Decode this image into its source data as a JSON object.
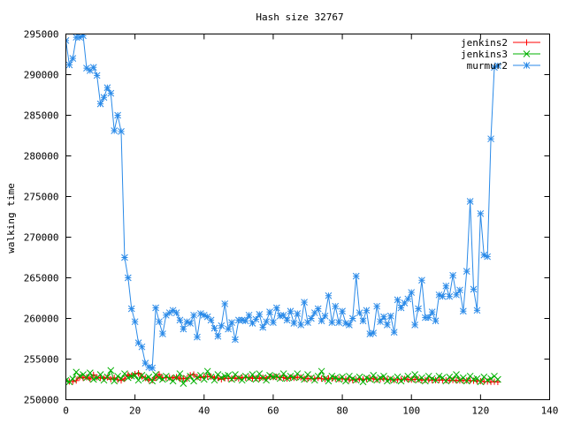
{
  "chart_data": {
    "type": "line",
    "title": "Hash size 32767",
    "xlabel": "",
    "ylabel": "walking time",
    "xlim": [
      0,
      140
    ],
    "ylim": [
      250000,
      295000
    ],
    "xticks": [
      "0",
      "20",
      "40",
      "60",
      "80",
      "100",
      "120",
      "140"
    ],
    "yticks": [
      "250000",
      "255000",
      "260000",
      "265000",
      "270000",
      "275000",
      "280000",
      "285000",
      "290000",
      "295000"
    ],
    "grid": false,
    "legend_position": "top-right",
    "series": [
      {
        "name": "jenkins2",
        "color": "#ff0000",
        "marker": "plus",
        "values": [
          252242,
          252240,
          252227,
          252355,
          252776,
          252678,
          252764,
          252553,
          253064,
          252754,
          252664,
          252632,
          252751,
          252520,
          252684,
          252458,
          252368,
          252575,
          253075,
          252925,
          253164,
          253256,
          252861,
          252665,
          252431,
          252399,
          252683,
          253113,
          252679,
          252708,
          252739,
          252674,
          252779,
          252561,
          252647,
          252580,
          253018,
          253103,
          252788,
          252705,
          252862,
          252832,
          252850,
          252662,
          252666,
          252508,
          252645,
          252605,
          252617,
          252681,
          252601,
          252754,
          252695,
          252749,
          252623,
          252655,
          252594,
          252720,
          252622,
          252826,
          252791,
          252803,
          252724,
          252710,
          252593,
          252735,
          252682,
          252771,
          252742,
          252575,
          252592,
          252626,
          252578,
          252678,
          252587,
          252531,
          252654,
          252587,
          252613,
          252547,
          252585,
          252538,
          252451,
          252415,
          252452,
          252560,
          252500,
          252545,
          252623,
          252558,
          252477,
          252520,
          252577,
          252519,
          252467,
          252422,
          252475,
          252480,
          252564,
          252475,
          252466,
          252509,
          252488,
          252406,
          252435,
          252452,
          252400,
          252401,
          252429,
          252410,
          252392,
          252371,
          252414,
          252362,
          252366,
          252370,
          252366,
          252356,
          252334,
          252301,
          252292,
          252241,
          252233,
          252195,
          252210,
          252178
        ]
      },
      {
        "name": "jenkins3",
        "color": "#00b000",
        "marker": "cross",
        "values": [
          252380,
          252200,
          252550,
          253400,
          252900,
          253100,
          252700,
          253300,
          252500,
          252700,
          253100,
          252400,
          252800,
          253600,
          252300,
          252900,
          252600,
          253200,
          252700,
          252900,
          253000,
          252400,
          253000,
          252600,
          252800,
          252300,
          253100,
          252700,
          252500,
          252900,
          252600,
          252300,
          252700,
          253200,
          252000,
          252600,
          252900,
          252300,
          252700,
          253000,
          252500,
          253500,
          252800,
          252400,
          253100,
          252700,
          252900,
          253000,
          252500,
          253100,
          252700,
          252400,
          252900,
          252600,
          253100,
          252500,
          253200,
          252700,
          252400,
          253000,
          252800,
          252900,
          252600,
          253200,
          252600,
          252900,
          252700,
          253200,
          252800,
          252500,
          253100,
          252700,
          252400,
          252900,
          253500,
          252600,
          252300,
          252900,
          252700,
          252500,
          252800,
          252300,
          252900,
          252600,
          252400,
          252800,
          252200,
          252700,
          252500,
          253000,
          252400,
          252700,
          252900,
          252300,
          252600,
          252400,
          252800,
          252300,
          252600,
          252900,
          252500,
          253100,
          252400,
          252700,
          252300,
          252900,
          252600,
          252400,
          252900,
          252700,
          252300,
          252800,
          252500,
          253100,
          252400,
          252700,
          252300,
          252900,
          252500,
          252600,
          252200,
          252800,
          252400,
          252600,
          252900,
          252500
        ]
      },
      {
        "name": "murmur2",
        "color": "#2a8ae8",
        "marker": "star",
        "values": [
          294200,
          291200,
          292000,
          294600,
          294600,
          294800,
          290800,
          290500,
          290900,
          289900,
          286400,
          287200,
          288400,
          287700,
          283100,
          285000,
          283000,
          267500,
          265000,
          261200,
          259600,
          257000,
          256500,
          254500,
          254000,
          253900,
          261300,
          259600,
          258100,
          260400,
          260700,
          261000,
          260700,
          259800,
          258700,
          259600,
          259400,
          260400,
          257700,
          260600,
          260400,
          260200,
          259800,
          258800,
          257800,
          259100,
          261800,
          258700,
          259500,
          257400,
          259800,
          259800,
          259700,
          260400,
          259400,
          259900,
          260500,
          258900,
          259600,
          260800,
          259500,
          261300,
          260300,
          260400,
          259800,
          260900,
          259400,
          260600,
          259200,
          262000,
          259500,
          260000,
          260700,
          261200,
          259700,
          260300,
          262800,
          259500,
          261500,
          259500,
          260900,
          259400,
          259200,
          260000,
          265200,
          260700,
          259700,
          261000,
          258100,
          258200,
          261500,
          259600,
          260200,
          259200,
          260300,
          258300,
          262300,
          261300,
          261900,
          262400,
          263200,
          259200,
          261200,
          264700,
          260100,
          260100,
          260800,
          259700,
          262900,
          262700,
          264000,
          262700,
          265300,
          262900,
          263500,
          260900,
          265800,
          274400,
          263600,
          261000,
          272900,
          267800,
          267600,
          282100,
          290900,
          291100
        ]
      }
    ]
  }
}
